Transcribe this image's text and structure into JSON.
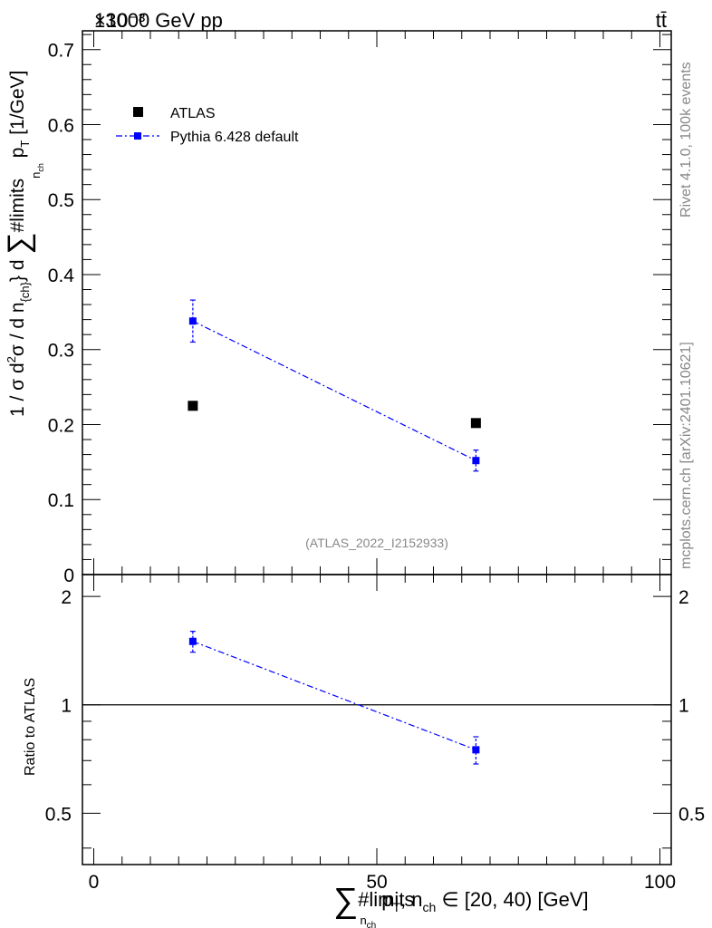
{
  "header": {
    "left_title": "13000 GeV pp",
    "right_title": "tt̄",
    "exponent_label": "×10⁻³"
  },
  "side_text": {
    "rivet": "Rivet 4.1.0,  100k events",
    "mcplots": "mcplots.cern.ch [arXiv:2401.10621]"
  },
  "chart_data": [
    {
      "type": "scatter",
      "panel": "main",
      "title": "13000 GeV pp",
      "ylabel": "1 / σ d²σ / d n_{ch} d ∑#limits_{n_ch} p_T [1/GeV]",
      "ylabel_parts": {
        "main": "1 / σ d",
        "sup": "2",
        "after": "σ / d n",
        "sub1": "{ch}",
        "after2": "} d ",
        "sum": "∑",
        "after3": "#limits",
        "sub2": "n",
        "sub2b": "ch",
        "after4": " p",
        "sub3": "T",
        "after5": " [1/GeV]"
      },
      "analysis_tag": "(ATLAS_2022_I2152933)",
      "xlim": [
        -2,
        102
      ],
      "ylim": [
        0,
        0.725
      ],
      "scale_note": "values multiplied by 10^-3",
      "yticks": [
        "0",
        "0.1",
        "0.2",
        "0.3",
        "0.4",
        "0.5",
        "0.6",
        "0.7"
      ],
      "legend": {
        "placement": "top-left",
        "entries": [
          "ATLAS",
          "Pythia 6.428 default"
        ]
      },
      "series": [
        {
          "name": "ATLAS",
          "style": "marker",
          "color": "#000000",
          "points": [
            {
              "x": 17.5,
              "y": 0.225
            },
            {
              "x": 67.5,
              "y": 0.202
            }
          ]
        },
        {
          "name": "Pythia 6.428 default",
          "style": "dashdot-line-marker",
          "color": "#0000ff",
          "points": [
            {
              "x": 17.5,
              "y": 0.338,
              "err": 0.028
            },
            {
              "x": 67.5,
              "y": 0.152,
              "err": 0.014
            }
          ]
        }
      ]
    },
    {
      "type": "scatter",
      "panel": "ratio",
      "ylabel": "Ratio to ATLAS",
      "ylim": [
        0.36,
        2.3
      ],
      "ytick_labels": [
        "0.5",
        "1",
        "2"
      ],
      "reference_line": 1,
      "xlabel_parts": {
        "sum": "∑",
        "limits": "#limits",
        "sub": "n",
        "subsub": "ch",
        "pt": "p",
        "ptsub": "T",
        "rest": ", n",
        "chsub": "ch",
        "range": " ∈ [20, 40) [GeV]"
      },
      "xticks": [
        "0",
        "50",
        "100"
      ],
      "series": [
        {
          "name": "Pythia 6.428 default",
          "color": "#0000ff",
          "points": [
            {
              "x": 17.5,
              "y": 1.5,
              "err": 0.1
            },
            {
              "x": 67.5,
              "y": 0.75,
              "err": 0.065
            }
          ]
        }
      ]
    }
  ]
}
